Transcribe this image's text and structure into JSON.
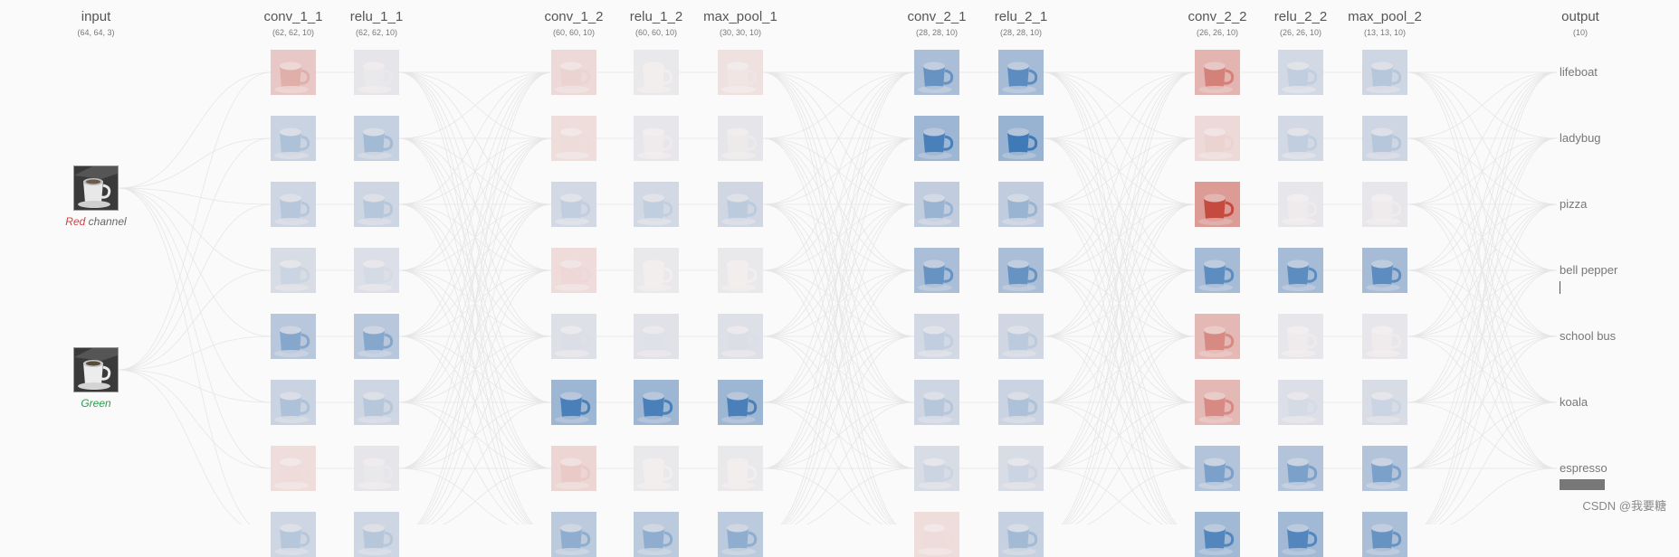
{
  "input": {
    "title": "input",
    "shape": "(64, 64, 3)",
    "channels": [
      {
        "label_colored": "Red",
        "label_rest": " channel",
        "color": "#c44444"
      },
      {
        "label_colored": "Green",
        "label_rest": "",
        "color": "#2a9d4a"
      }
    ]
  },
  "layers": [
    {
      "name": "conv_1_1",
      "shape": "(62, 62, 10)"
    },
    {
      "name": "relu_1_1",
      "shape": "(62, 62, 10)"
    },
    {
      "name": "conv_1_2",
      "shape": "(60, 60, 10)"
    },
    {
      "name": "relu_1_2",
      "shape": "(60, 60, 10)"
    },
    {
      "name": "max_pool_1",
      "shape": "(30, 30, 10)"
    },
    {
      "name": "conv_2_1",
      "shape": "(28, 28, 10)"
    },
    {
      "name": "relu_2_1",
      "shape": "(28, 28, 10)"
    },
    {
      "name": "conv_2_2",
      "shape": "(26, 26, 10)"
    },
    {
      "name": "relu_2_2",
      "shape": "(26, 26, 10)"
    },
    {
      "name": "max_pool_2",
      "shape": "(13, 13, 10)"
    }
  ],
  "output": {
    "title": "output",
    "shape": "(10)",
    "classes": [
      "lifeboat",
      "ladybug",
      "pizza",
      "bell pepper",
      "school bus",
      "koala",
      "espresso"
    ],
    "highlighted_class": "espresso"
  },
  "activation_colors": {
    "positive": "#2b6cb0",
    "negative": "#c0392b",
    "neutral": "#f3eeee"
  },
  "activations": [
    [
      -0.35,
      0.05,
      -0.15,
      0.0,
      -0.05,
      0.7,
      0.75,
      -0.6,
      0.25,
      0.3
    ],
    [
      0.35,
      0.4,
      -0.1,
      0.02,
      0.03,
      0.85,
      0.9,
      -0.15,
      0.25,
      0.3
    ],
    [
      0.3,
      0.3,
      0.25,
      0.25,
      0.28,
      0.45,
      0.45,
      -0.9,
      0.02,
      0.02
    ],
    [
      0.2,
      0.15,
      -0.12,
      0.0,
      0.0,
      0.7,
      0.7,
      0.75,
      0.75,
      0.75
    ],
    [
      0.55,
      0.55,
      0.12,
      0.1,
      0.12,
      0.25,
      0.28,
      -0.55,
      0.02,
      0.02
    ],
    [
      0.35,
      0.3,
      0.85,
      0.85,
      0.85,
      0.3,
      0.35,
      -0.55,
      0.15,
      0.2
    ],
    [
      -0.1,
      0.05,
      -0.2,
      0.0,
      0.0,
      0.2,
      0.2,
      0.6,
      0.6,
      0.6
    ],
    [
      0.3,
      0.3,
      0.5,
      0.5,
      0.5,
      -0.1,
      0.4,
      0.8,
      0.8,
      0.7
    ]
  ],
  "watermark": "CSDN @我要糖"
}
